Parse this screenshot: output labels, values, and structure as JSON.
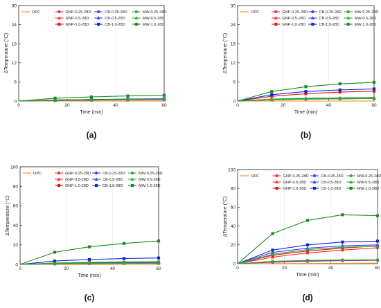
{
  "series_styles": {
    "OPC": {
      "color": "#ff8c00",
      "marker": "none"
    },
    "GNP-0.25-28D": {
      "color": "#ff3333",
      "marker": "circle"
    },
    "GNP-0.5-28D": {
      "color": "#ff3333",
      "marker": "triangle"
    },
    "GNP-1.0-28D": {
      "color": "#ee1111",
      "marker": "square"
    },
    "CB-0.25-28D": {
      "color": "#3344ff",
      "marker": "circle"
    },
    "CB-0.5-28D": {
      "color": "#3344ff",
      "marker": "triangle"
    },
    "CB-1.0-28D": {
      "color": "#1122dd",
      "marker": "square"
    },
    "MW-0.25-28D": {
      "color": "#33aa33",
      "marker": "circle"
    },
    "MW-0.5-28D": {
      "color": "#33aa33",
      "marker": "triangle"
    },
    "MW-1.0-28D": {
      "color": "#1a8a1a",
      "marker": "square"
    }
  },
  "chart_data": [
    {
      "type": "line",
      "caption": "(a)",
      "xlabel": "Time (min)",
      "ylabel": "ΔTemperature (°C)",
      "xlim": [
        0,
        60
      ],
      "ylim": [
        0,
        30
      ],
      "xticks": [
        0,
        20,
        40,
        60
      ],
      "yticks": [
        0,
        6,
        12,
        18,
        24,
        30
      ],
      "series": [
        {
          "name": "OPC",
          "x": [
            0,
            60
          ],
          "y": [
            0,
            0
          ]
        },
        {
          "name": "GNP-0.25-28D",
          "x": [
            0,
            15,
            30,
            45,
            60
          ],
          "y": [
            0,
            0.2,
            0.3,
            0.35,
            0.4
          ]
        },
        {
          "name": "GNP-0.5-28D",
          "x": [
            0,
            15,
            30,
            45,
            60
          ],
          "y": [
            0,
            0.2,
            0.3,
            0.35,
            0.4
          ]
        },
        {
          "name": "GNP-1.0-28D",
          "x": [
            0,
            15,
            30,
            45,
            60
          ],
          "y": [
            0,
            0.25,
            0.35,
            0.4,
            0.45
          ]
        },
        {
          "name": "CB-0.25-28D",
          "x": [
            0,
            15,
            30,
            45,
            60
          ],
          "y": [
            0,
            0.2,
            0.3,
            0.4,
            0.45
          ]
        },
        {
          "name": "CB-0.5-28D",
          "x": [
            0,
            15,
            30,
            45,
            60
          ],
          "y": [
            0,
            0.3,
            0.45,
            0.55,
            0.6
          ]
        },
        {
          "name": "CB-1.0-28D",
          "x": [
            0,
            15,
            30,
            45,
            60
          ],
          "y": [
            0,
            0.35,
            0.5,
            0.6,
            0.7
          ]
        },
        {
          "name": "MW-0.25-28D",
          "x": [
            0,
            15,
            30,
            45,
            60
          ],
          "y": [
            0,
            0.3,
            0.4,
            0.5,
            0.5
          ]
        },
        {
          "name": "MW-0.5-28D",
          "x": [
            0,
            15,
            30,
            45,
            60
          ],
          "y": [
            0,
            0.3,
            0.45,
            0.5,
            0.55
          ]
        },
        {
          "name": "MW-1.0-28D",
          "x": [
            0,
            15,
            30,
            45,
            60
          ],
          "y": [
            0,
            0.9,
            1.3,
            1.6,
            1.8
          ]
        }
      ]
    },
    {
      "type": "line",
      "caption": "(b)",
      "xlabel": "Time (min)",
      "ylabel": "ΔTemperature (°C)",
      "xlim": [
        0,
        60
      ],
      "ylim": [
        0,
        30
      ],
      "xticks": [
        0,
        20,
        40,
        60
      ],
      "yticks": [
        0,
        6,
        12,
        18,
        24,
        30
      ],
      "series": [
        {
          "name": "OPC",
          "x": [
            0,
            60
          ],
          "y": [
            0,
            0
          ]
        },
        {
          "name": "GNP-0.25-28D",
          "x": [
            0,
            15,
            30,
            45,
            60
          ],
          "y": [
            0,
            0.4,
            0.6,
            0.7,
            0.8
          ]
        },
        {
          "name": "GNP-0.5-28D",
          "x": [
            0,
            15,
            30,
            45,
            60
          ],
          "y": [
            0,
            0.5,
            0.7,
            0.8,
            0.9
          ]
        },
        {
          "name": "GNP-1.0-28D",
          "x": [
            0,
            15,
            30,
            45,
            60
          ],
          "y": [
            0,
            1.5,
            2.3,
            2.8,
            3.1
          ]
        },
        {
          "name": "CB-0.25-28D",
          "x": [
            0,
            15,
            30,
            45,
            60
          ],
          "y": [
            0,
            0.4,
            0.6,
            0.7,
            0.8
          ]
        },
        {
          "name": "CB-0.5-28D",
          "x": [
            0,
            15,
            30,
            45,
            60
          ],
          "y": [
            0,
            0.6,
            0.9,
            1.0,
            1.1
          ]
        },
        {
          "name": "CB-1.0-28D",
          "x": [
            0,
            15,
            30,
            45,
            60
          ],
          "y": [
            0,
            2.0,
            3.0,
            3.5,
            3.8
          ]
        },
        {
          "name": "MW-0.25-28D",
          "x": [
            0,
            15,
            30,
            45,
            60
          ],
          "y": [
            0,
            0.4,
            0.6,
            0.7,
            0.8
          ]
        },
        {
          "name": "MW-0.5-28D",
          "x": [
            0,
            15,
            30,
            45,
            60
          ],
          "y": [
            0,
            0.6,
            0.9,
            1.0,
            1.1
          ]
        },
        {
          "name": "MW-1.0-28D",
          "x": [
            0,
            15,
            30,
            45,
            60
          ],
          "y": [
            0,
            3.0,
            4.5,
            5.4,
            5.9
          ]
        }
      ]
    },
    {
      "type": "line",
      "caption": "(c)",
      "xlabel": "Time (min)",
      "ylabel": "ΔTemperature (°C)",
      "xlim": [
        0,
        60
      ],
      "ylim": [
        0,
        100
      ],
      "xticks": [
        0,
        20,
        40,
        60
      ],
      "yticks": [
        0,
        20,
        40,
        60,
        80,
        100
      ],
      "series": [
        {
          "name": "OPC",
          "x": [
            0,
            60
          ],
          "y": [
            0,
            0
          ]
        },
        {
          "name": "GNP-0.25-28D",
          "x": [
            0,
            15,
            30,
            45,
            60
          ],
          "y": [
            0,
            0.5,
            0.8,
            1.0,
            1.0
          ]
        },
        {
          "name": "GNP-0.5-28D",
          "x": [
            0,
            15,
            30,
            45,
            60
          ],
          "y": [
            0,
            0.6,
            1.0,
            1.2,
            1.3
          ]
        },
        {
          "name": "GNP-1.0-28D",
          "x": [
            0,
            15,
            30,
            45,
            60
          ],
          "y": [
            0,
            1.2,
            1.8,
            2.1,
            2.3
          ]
        },
        {
          "name": "CB-0.25-28D",
          "x": [
            0,
            15,
            30,
            45,
            60
          ],
          "y": [
            0,
            0.6,
            0.9,
            1.1,
            1.2
          ]
        },
        {
          "name": "CB-0.5-28D",
          "x": [
            0,
            15,
            30,
            45,
            60
          ],
          "y": [
            0,
            1.0,
            1.5,
            1.8,
            2.0
          ]
        },
        {
          "name": "CB-1.0-28D",
          "x": [
            0,
            15,
            30,
            45,
            60
          ],
          "y": [
            0,
            3.5,
            5.0,
            6.0,
            6.6
          ]
        },
        {
          "name": "MW-0.25-28D",
          "x": [
            0,
            15,
            30,
            45,
            60
          ],
          "y": [
            0,
            0.7,
            1.0,
            1.2,
            1.3
          ]
        },
        {
          "name": "MW-0.5-28D",
          "x": [
            0,
            15,
            30,
            45,
            60
          ],
          "y": [
            0,
            1.5,
            2.2,
            2.6,
            2.8
          ]
        },
        {
          "name": "MW-1.0-28D",
          "x": [
            0,
            15,
            30,
            45,
            60
          ],
          "y": [
            0,
            12.5,
            18.0,
            21.5,
            24.0
          ]
        }
      ]
    },
    {
      "type": "line",
      "caption": "(d)",
      "xlabel": "Time (min)",
      "ylabel": "ΔTemperature (°C)",
      "xlim": [
        0,
        60
      ],
      "ylim": [
        0,
        100
      ],
      "xticks": [
        0,
        20,
        40,
        60
      ],
      "yticks": [
        0,
        20,
        40,
        60,
        80,
        100
      ],
      "series": [
        {
          "name": "OPC",
          "x": [
            0,
            60
          ],
          "y": [
            0,
            0.5
          ]
        },
        {
          "name": "GNP-0.25-28D",
          "x": [
            0,
            15,
            30,
            45,
            60
          ],
          "y": [
            0,
            1.5,
            2.5,
            3.2,
            3.6
          ]
        },
        {
          "name": "GNP-0.5-28D",
          "x": [
            0,
            15,
            30,
            45,
            60
          ],
          "y": [
            0,
            7.0,
            11.5,
            14.5,
            17.0
          ]
        },
        {
          "name": "GNP-1.0-28D",
          "x": [
            0,
            15,
            30,
            45,
            60
          ],
          "y": [
            0,
            9.0,
            13.5,
            16.5,
            19.0
          ]
        },
        {
          "name": "CB-0.25-28D",
          "x": [
            0,
            15,
            30,
            45,
            60
          ],
          "y": [
            0,
            2.0,
            3.0,
            3.5,
            3.8
          ]
        },
        {
          "name": "CB-0.5-28D",
          "x": [
            0,
            15,
            30,
            45,
            60
          ],
          "y": [
            0,
            12.0,
            16.5,
            19.0,
            20.0
          ]
        },
        {
          "name": "CB-1.0-28D",
          "x": [
            0,
            15,
            30,
            45,
            60
          ],
          "y": [
            0,
            14.5,
            20.0,
            23.0,
            24.0
          ]
        },
        {
          "name": "MW-0.25-28D",
          "x": [
            0,
            15,
            30,
            45,
            60
          ],
          "y": [
            0,
            2.5,
            3.5,
            4.0,
            4.2
          ]
        },
        {
          "name": "MW-0.5-28D",
          "x": [
            0,
            15,
            30,
            45,
            60
          ],
          "y": [
            0,
            10.0,
            15.0,
            17.5,
            18.5
          ]
        },
        {
          "name": "MW-1.0-28D",
          "x": [
            0,
            15,
            30,
            45,
            60
          ],
          "y": [
            0,
            32.0,
            46.0,
            52.0,
            51.0
          ]
        }
      ]
    }
  ]
}
